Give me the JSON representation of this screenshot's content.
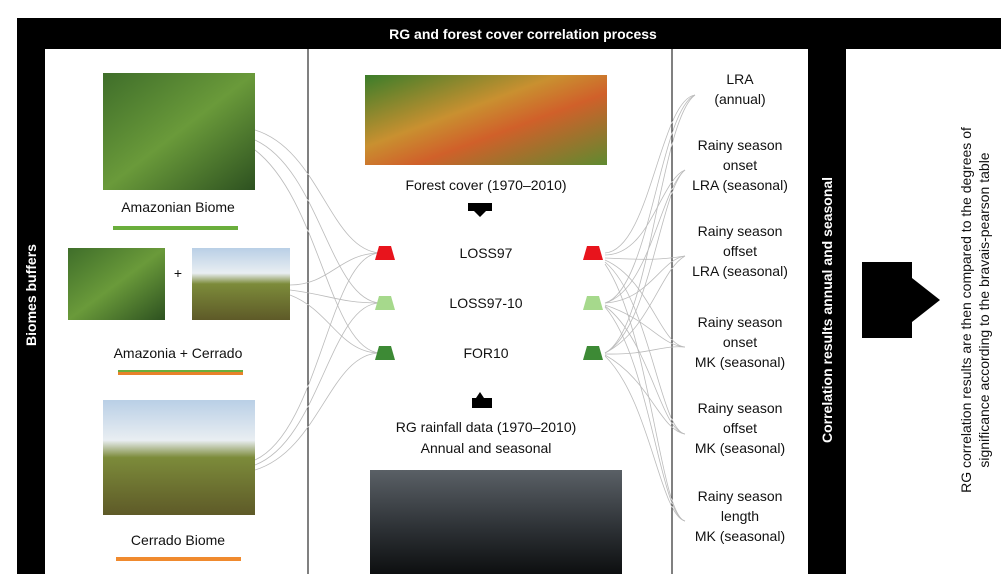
{
  "header": {
    "title": "RG and forest cover correlation process"
  },
  "left_bar": {
    "label": "Biomes buffers"
  },
  "biomes": [
    {
      "label": "Amazonian Biome"
    },
    {
      "label": "Amazonia + Cerrado",
      "joiner": "+"
    },
    {
      "label": "Cerrado Biome"
    }
  ],
  "center": {
    "forest_label": "Forest cover (1970–2010)",
    "variables": [
      "LOSS97",
      "LOSS97-10",
      "FOR10"
    ],
    "rainfall_lines": [
      "RG rainfall data (1970–2010)",
      "Annual and seasonal"
    ]
  },
  "results": [
    {
      "lines": [
        "LRA",
        "(annual)"
      ]
    },
    {
      "lines": [
        "Rainy season",
        "onset",
        "LRA (seasonal)"
      ]
    },
    {
      "lines": [
        "Rainy season",
        "offset",
        "LRA (seasonal)"
      ]
    },
    {
      "lines": [
        "Rainy season",
        "onset",
        "MK (seasonal)"
      ]
    },
    {
      "lines": [
        "Rainy season",
        "offset",
        "MK (seasonal)"
      ]
    },
    {
      "lines": [
        "Rainy season",
        "length",
        "MK (seasonal)"
      ]
    }
  ],
  "results_bar": {
    "label": "Correlation results annual and seasonal"
  },
  "conclusion": {
    "lines": [
      "RG correlation results are then compared to the degrees of",
      "significance according to the bravais-pearson table"
    ]
  }
}
